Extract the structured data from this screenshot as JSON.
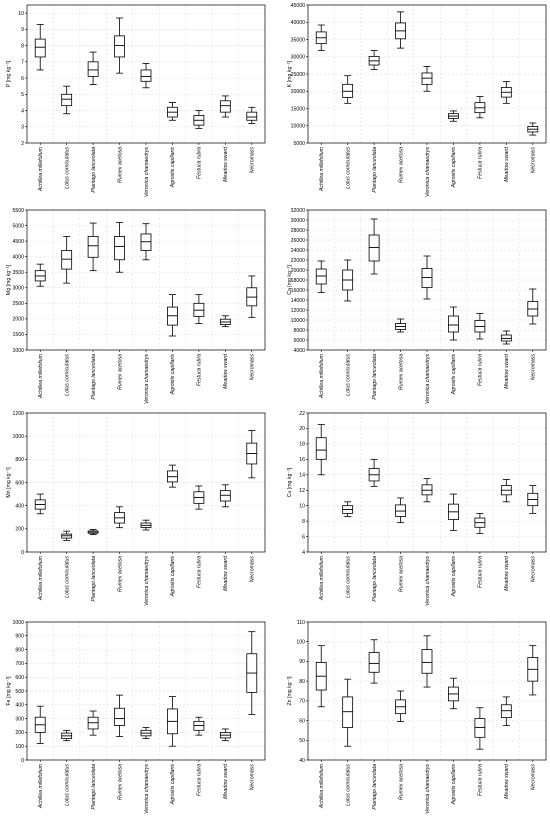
{
  "chart_data": [
    {
      "type": "box",
      "ylabel": "P [mg kg⁻¹]",
      "ylim": [
        2,
        10.5
      ],
      "yticks": [
        2,
        3,
        4,
        5,
        6,
        7,
        8,
        9,
        10
      ],
      "categories": [
        "Achillea millefolium",
        "Lotus corniculatus",
        "Plantago lanceolata",
        "Rumex acetosa",
        "Veronica chamaedrys",
        "Agrostis capillaris",
        "Festuca rubra",
        "Meadow sward",
        "Necromass"
      ],
      "boxes": [
        {
          "min": 6.5,
          "q1": 7.3,
          "median": 7.9,
          "q3": 8.4,
          "max": 9.3
        },
        {
          "min": 3.8,
          "q1": 4.3,
          "median": 4.7,
          "q3": 5.0,
          "max": 5.5
        },
        {
          "min": 5.6,
          "q1": 6.1,
          "median": 6.5,
          "q3": 7.0,
          "max": 7.6
        },
        {
          "min": 6.3,
          "q1": 7.3,
          "median": 8.0,
          "q3": 8.6,
          "max": 9.7
        },
        {
          "min": 5.4,
          "q1": 5.8,
          "median": 6.1,
          "q3": 6.5,
          "max": 6.9
        },
        {
          "min": 3.4,
          "q1": 3.6,
          "median": 3.9,
          "q3": 4.2,
          "max": 4.5
        },
        {
          "min": 2.9,
          "q1": 3.1,
          "median": 3.4,
          "q3": 3.7,
          "max": 4.0
        },
        {
          "min": 3.6,
          "q1": 3.9,
          "median": 4.3,
          "q3": 4.6,
          "max": 4.9
        },
        {
          "min": 3.2,
          "q1": 3.4,
          "median": 3.6,
          "q3": 3.9,
          "max": 4.2
        }
      ]
    },
    {
      "type": "box",
      "ylabel": "K [mg kg⁻¹]",
      "ylim": [
        5000,
        45000
      ],
      "yticks": [
        5000,
        10000,
        15000,
        20000,
        25000,
        30000,
        35000,
        40000,
        45000
      ],
      "categories": [
        "Achillea millefolium",
        "Lotus corniculatus",
        "Plantago lanceolata",
        "Rumex acetosa",
        "Veronica chamaedrys",
        "Agrostis capillaris",
        "Festuca rubra",
        "Meadow sward",
        "Necromass"
      ],
      "boxes": [
        {
          "min": 31800,
          "q1": 33800,
          "median": 35500,
          "q3": 37200,
          "max": 39200
        },
        {
          "min": 16500,
          "q1": 18200,
          "median": 20000,
          "q3": 22000,
          "max": 24500
        },
        {
          "min": 26300,
          "q1": 27600,
          "median": 28800,
          "q3": 30100,
          "max": 31800
        },
        {
          "min": 32500,
          "q1": 35200,
          "median": 37500,
          "q3": 39800,
          "max": 43000
        },
        {
          "min": 20000,
          "q1": 22000,
          "median": 23800,
          "q3": 25300,
          "max": 27200
        },
        {
          "min": 11300,
          "q1": 12100,
          "median": 12800,
          "q3": 13500,
          "max": 14300
        },
        {
          "min": 12300,
          "q1": 13800,
          "median": 15200,
          "q3": 16700,
          "max": 18500
        },
        {
          "min": 16500,
          "q1": 18300,
          "median": 19700,
          "q3": 21100,
          "max": 22800
        },
        {
          "min": 7300,
          "q1": 8200,
          "median": 9000,
          "q3": 9800,
          "max": 10800
        }
      ]
    },
    {
      "type": "box",
      "ylabel": "Mg [mg kg⁻¹]",
      "ylim": [
        1000,
        5500
      ],
      "yticks": [
        1000,
        1500,
        2000,
        2500,
        3000,
        3500,
        4000,
        4500,
        5000,
        5500
      ],
      "categories": [
        "Achillea millefolium",
        "Lotus corniculatus",
        "Plantago lanceolata",
        "Rumex acetosa",
        "Veronica chamaedrys",
        "Agrostis capillaris",
        "Festuca rubra",
        "Meadow sward",
        "Necromass"
      ],
      "boxes": [
        {
          "min": 3050,
          "q1": 3220,
          "median": 3380,
          "q3": 3550,
          "max": 3760
        },
        {
          "min": 3150,
          "q1": 3600,
          "median": 3920,
          "q3": 4200,
          "max": 4650
        },
        {
          "min": 3550,
          "q1": 3980,
          "median": 4350,
          "q3": 4650,
          "max": 5080
        },
        {
          "min": 3500,
          "q1": 3900,
          "median": 4330,
          "q3": 4650,
          "max": 5100
        },
        {
          "min": 3900,
          "q1": 4200,
          "median": 4480,
          "q3": 4730,
          "max": 5060
        },
        {
          "min": 1450,
          "q1": 1800,
          "median": 2100,
          "q3": 2380,
          "max": 2780
        },
        {
          "min": 1850,
          "q1": 2080,
          "median": 2280,
          "q3": 2500,
          "max": 2780
        },
        {
          "min": 1750,
          "q1": 1820,
          "median": 1900,
          "q3": 1990,
          "max": 2100
        },
        {
          "min": 2050,
          "q1": 2420,
          "median": 2700,
          "q3": 3000,
          "max": 3380
        }
      ]
    },
    {
      "type": "box",
      "ylabel": "Ca [mg kg⁻¹]",
      "ylim": [
        4000,
        32000
      ],
      "yticks": [
        4000,
        6000,
        8000,
        10000,
        12000,
        14000,
        16000,
        18000,
        20000,
        22000,
        24000,
        26000,
        28000,
        30000,
        32000
      ],
      "categories": [
        "Achillea millefolium",
        "Lotus corniculatus",
        "Plantago lanceolata",
        "Rumex acetosa",
        "Veronica chamaedrys",
        "Agrostis capillaris",
        "Festuca rubra",
        "Meadow sward",
        "Necromass"
      ],
      "boxes": [
        {
          "min": 15500,
          "q1": 17200,
          "median": 18800,
          "q3": 20200,
          "max": 21800
        },
        {
          "min": 13800,
          "q1": 16000,
          "median": 18000,
          "q3": 20000,
          "max": 22000
        },
        {
          "min": 19200,
          "q1": 21800,
          "median": 24500,
          "q3": 27000,
          "max": 30200
        },
        {
          "min": 7600,
          "q1": 8100,
          "median": 8700,
          "q3": 9300,
          "max": 10200
        },
        {
          "min": 14200,
          "q1": 16500,
          "median": 18500,
          "q3": 20300,
          "max": 22800
        },
        {
          "min": 6000,
          "q1": 7600,
          "median": 9000,
          "q3": 10800,
          "max": 12600
        },
        {
          "min": 6200,
          "q1": 7600,
          "median": 8700,
          "q3": 9900,
          "max": 11300
        },
        {
          "min": 5200,
          "q1": 5800,
          "median": 6300,
          "q3": 7000,
          "max": 7800
        },
        {
          "min": 9200,
          "q1": 10800,
          "median": 12200,
          "q3": 13700,
          "max": 16200
        }
      ]
    },
    {
      "type": "box",
      "ylabel": "Mn [mg kg⁻¹]",
      "ylim": [
        0,
        1200
      ],
      "yticks": [
        0,
        200,
        400,
        600,
        800,
        1000,
        1200
      ],
      "categories": [
        "Achillea millefolium",
        "Lotus corniculatus",
        "Plantago lanceolata",
        "Rumex acetosa",
        "Veronica chamaedrys",
        "Agrostis capillaris",
        "Festuca rubra",
        "Meadow sward",
        "Necromass"
      ],
      "boxes": [
        {
          "min": 330,
          "q1": 370,
          "median": 410,
          "q3": 450,
          "max": 500
        },
        {
          "min": 100,
          "q1": 120,
          "median": 140,
          "q3": 155,
          "max": 180
        },
        {
          "min": 150,
          "q1": 162,
          "median": 172,
          "q3": 182,
          "max": 195
        },
        {
          "min": 210,
          "q1": 250,
          "median": 295,
          "q3": 340,
          "max": 390
        },
        {
          "min": 190,
          "q1": 212,
          "median": 230,
          "q3": 250,
          "max": 275
        },
        {
          "min": 560,
          "q1": 605,
          "median": 650,
          "q3": 700,
          "max": 750
        },
        {
          "min": 370,
          "q1": 420,
          "median": 470,
          "q3": 520,
          "max": 570
        },
        {
          "min": 390,
          "q1": 440,
          "median": 490,
          "q3": 530,
          "max": 580
        },
        {
          "min": 640,
          "q1": 760,
          "median": 850,
          "q3": 940,
          "max": 1050
        }
      ]
    },
    {
      "type": "box",
      "ylabel": "Cu [mg kg⁻¹]",
      "ylim": [
        4,
        22
      ],
      "yticks": [
        4,
        6,
        8,
        10,
        12,
        14,
        16,
        18,
        20,
        22
      ],
      "categories": [
        "Achillea millefolium",
        "Lotus corniculatus",
        "Plantago lanceolata",
        "Rumex acetosa",
        "Veronica chamaedrys",
        "Agrostis capillaris",
        "Festuca rubra",
        "Meadow sward",
        "Necromass"
      ],
      "boxes": [
        {
          "min": 14.0,
          "q1": 16.0,
          "median": 17.2,
          "q3": 18.8,
          "max": 20.5
        },
        {
          "min": 8.6,
          "q1": 9.0,
          "median": 9.5,
          "q3": 10.0,
          "max": 10.5
        },
        {
          "min": 12.5,
          "q1": 13.2,
          "median": 14.0,
          "q3": 14.8,
          "max": 16.0
        },
        {
          "min": 7.8,
          "q1": 8.6,
          "median": 9.3,
          "q3": 10.1,
          "max": 11.0
        },
        {
          "min": 10.5,
          "q1": 11.4,
          "median": 12.0,
          "q3": 12.7,
          "max": 13.5
        },
        {
          "min": 6.8,
          "q1": 8.2,
          "median": 9.2,
          "q3": 10.2,
          "max": 11.5
        },
        {
          "min": 6.4,
          "q1": 7.2,
          "median": 7.8,
          "q3": 8.4,
          "max": 9.0
        },
        {
          "min": 10.5,
          "q1": 11.4,
          "median": 12.0,
          "q3": 12.6,
          "max": 13.4
        },
        {
          "min": 9.0,
          "q1": 10.0,
          "median": 10.8,
          "q3": 11.6,
          "max": 12.6
        }
      ]
    },
    {
      "type": "box",
      "ylabel": "Fe [mg kg⁻¹]",
      "ylim": [
        0,
        1000
      ],
      "yticks": [
        0,
        100,
        200,
        300,
        400,
        500,
        600,
        700,
        800,
        900,
        1000
      ],
      "categories": [
        "Achillea millefolium",
        "Lotus corniculatus",
        "Plantago lanceolata",
        "Rumex acetosa",
        "Veronica chamaedrys",
        "Agrostis capillaris",
        "Festuca rubra",
        "Meadow sward",
        "Necromass"
      ],
      "boxes": [
        {
          "min": 120,
          "q1": 200,
          "median": 255,
          "q3": 310,
          "max": 390
        },
        {
          "min": 140,
          "q1": 155,
          "median": 175,
          "q3": 195,
          "max": 215
        },
        {
          "min": 180,
          "q1": 225,
          "median": 270,
          "q3": 310,
          "max": 355
        },
        {
          "min": 170,
          "q1": 250,
          "median": 300,
          "q3": 375,
          "max": 470
        },
        {
          "min": 155,
          "q1": 175,
          "median": 195,
          "q3": 215,
          "max": 235
        },
        {
          "min": 100,
          "q1": 190,
          "median": 280,
          "q3": 370,
          "max": 460
        },
        {
          "min": 180,
          "q1": 215,
          "median": 250,
          "q3": 280,
          "max": 310
        },
        {
          "min": 140,
          "q1": 160,
          "median": 180,
          "q3": 200,
          "max": 225
        },
        {
          "min": 330,
          "q1": 490,
          "median": 630,
          "q3": 770,
          "max": 930
        }
      ]
    },
    {
      "type": "box",
      "ylabel": "Zn [mg kg⁻¹]",
      "ylim": [
        40,
        110
      ],
      "yticks": [
        40,
        50,
        60,
        70,
        80,
        90,
        100,
        110
      ],
      "categories": [
        "Achillea millefolium",
        "Lotus corniculatus",
        "Plantago lanceolata",
        "Rumex acetosa",
        "Veronica chamaedrys",
        "Agrostis capillaris",
        "Festuca rubra",
        "Meadow sward",
        "Necromass"
      ],
      "boxes": [
        {
          "min": 67,
          "q1": 75.5,
          "median": 82.5,
          "q3": 89.5,
          "max": 98
        },
        {
          "min": 47,
          "q1": 56.5,
          "median": 64.5,
          "q3": 72,
          "max": 81
        },
        {
          "min": 79,
          "q1": 84.5,
          "median": 89,
          "q3": 94.5,
          "max": 101
        },
        {
          "min": 59.5,
          "q1": 63.5,
          "median": 67,
          "q3": 70.5,
          "max": 75
        },
        {
          "min": 77,
          "q1": 84,
          "median": 89.5,
          "q3": 96,
          "max": 103
        },
        {
          "min": 66,
          "q1": 70,
          "median": 73.5,
          "q3": 77,
          "max": 81.5
        },
        {
          "min": 45.5,
          "q1": 51.5,
          "median": 56.5,
          "q3": 61,
          "max": 66.5
        },
        {
          "min": 57.5,
          "q1": 61.5,
          "median": 65,
          "q3": 68,
          "max": 72
        },
        {
          "min": 73,
          "q1": 80,
          "median": 86,
          "q3": 92,
          "max": 98
        }
      ]
    }
  ]
}
